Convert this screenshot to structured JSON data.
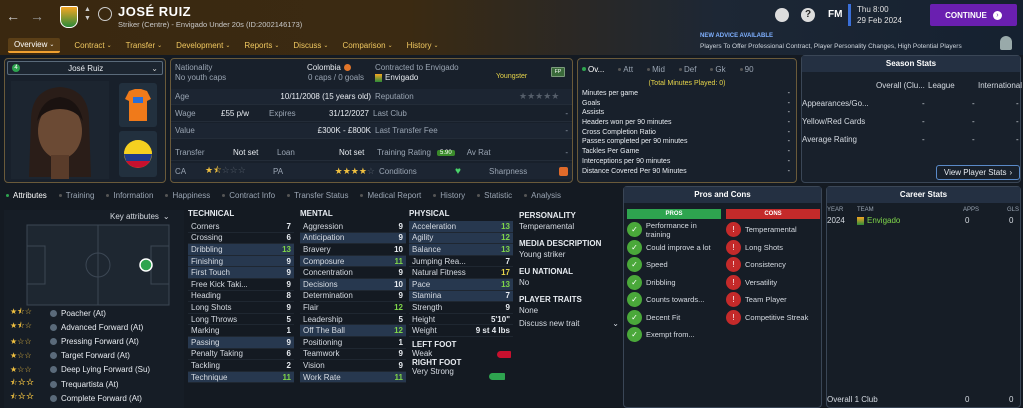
{
  "header": {
    "player_name": "JOSÉ RUIZ",
    "subtitle": "Striker (Centre) - Envigado Under 20s (ID:2002146173)",
    "date_day": "Thu 8:00",
    "date": "29 Feb 2024",
    "continue_label": "CONTINUE",
    "fm_label": "FM",
    "advice_title": "NEW ADVICE AVAILABLE",
    "advice_text": "Players To Offer Professional Contract, Player Personality Changes, High Potential Players"
  },
  "nav_tabs": [
    "Overview",
    "Contract",
    "Transfer",
    "Development",
    "Reports",
    "Discuss",
    "Comparison",
    "History"
  ],
  "player_card": {
    "name": "José Ruiz"
  },
  "info": {
    "nationality_label": "Nationality",
    "nationality": "Colombia",
    "youth_caps": "No youth caps",
    "caps": "0 caps / 0 goals",
    "contracted_label": "Contracted to Envigado",
    "club": "Envigado",
    "status": "Youngster",
    "age_label": "Age",
    "age": "10/11/2008 (15 years old)",
    "reputation_label": "Reputation",
    "wage_label": "Wage",
    "wage": "£55 p/w",
    "expires_label": "Expires",
    "expires": "31/12/2027",
    "last_club_label": "Last Club",
    "value_label": "Value",
    "value": "£300K - £800K",
    "last_fee_label": "Last Transfer Fee",
    "transfer_label": "Transfer",
    "transfer": "Not set",
    "loan_label": "Loan",
    "loan": "Not set",
    "training_label": "Training Rating",
    "training_rating": "5.90",
    "av_rat_label": "Av Rat",
    "ca_label": "CA",
    "pa_label": "PA",
    "conditions_label": "Conditions",
    "sharpness_label": "Sharpness",
    "ca_stars": 1.5,
    "pa_stars": 4,
    "reputation_stars": 0
  },
  "overview_stats": {
    "tabs": [
      "Ov...",
      "Att",
      "Mid",
      "Def",
      "Gk",
      "90"
    ],
    "minutes_note": "(Total Minutes Played: 0)",
    "rows": [
      {
        "label": "Minutes per game",
        "value": "-"
      },
      {
        "label": "Goals",
        "value": "-"
      },
      {
        "label": "Assists",
        "value": "-"
      },
      {
        "label": "Headers won per 90 minutes",
        "value": "-"
      },
      {
        "label": "Cross Completion Ratio",
        "value": "-"
      },
      {
        "label": "Passes completed per 90 minutes",
        "value": "-"
      },
      {
        "label": "Tackles Per Game",
        "value": "-"
      },
      {
        "label": "Interceptions per 90 minutes",
        "value": "-"
      },
      {
        "label": "Distance Covered Per 90 Minutes",
        "value": "-"
      }
    ]
  },
  "season_stats": {
    "title": "Season Stats",
    "cols": [
      "Overall (Clu...",
      "League",
      "International"
    ],
    "rows": [
      {
        "label": "Appearances/Go...",
        "values": [
          "-",
          "-",
          "-"
        ]
      },
      {
        "label": "Yellow/Red Cards",
        "values": [
          "-",
          "-",
          "-"
        ]
      },
      {
        "label": "Average Rating",
        "values": [
          "-",
          "-",
          "-"
        ]
      }
    ],
    "button": "View Player Stats"
  },
  "sub_tabs": [
    "Attributes",
    "Training",
    "Information",
    "Happiness",
    "Contract Info",
    "Transfer Status",
    "Medical Report",
    "History",
    "Statistic",
    "Analysis"
  ],
  "key_attributes_label": "Key attributes",
  "roles": [
    {
      "name": "Poacher (At)",
      "stars": 1.5
    },
    {
      "name": "Advanced Forward (At)",
      "stars": 1.5
    },
    {
      "name": "Pressing Forward (At)",
      "stars": 1
    },
    {
      "name": "Target Forward (At)",
      "stars": 1
    },
    {
      "name": "Deep Lying Forward (Su)",
      "stars": 1
    },
    {
      "name": "Trequartista (At)",
      "stars": 0.5
    },
    {
      "name": "Complete Forward (At)",
      "stars": 0.5
    }
  ],
  "technical": {
    "title": "TECHNICAL",
    "rows": [
      {
        "name": "Corners",
        "value": "7",
        "hl": false,
        "c": ""
      },
      {
        "name": "Crossing",
        "value": "6",
        "hl": false,
        "c": ""
      },
      {
        "name": "Dribbling",
        "value": "13",
        "hl": true,
        "c": "g"
      },
      {
        "name": "Finishing",
        "value": "9",
        "hl": true,
        "c": ""
      },
      {
        "name": "First Touch",
        "value": "9",
        "hl": true,
        "c": ""
      },
      {
        "name": "Free Kick Taki...",
        "value": "9",
        "hl": false,
        "c": ""
      },
      {
        "name": "Heading",
        "value": "8",
        "hl": false,
        "c": ""
      },
      {
        "name": "Long Shots",
        "value": "9",
        "hl": false,
        "c": ""
      },
      {
        "name": "Long Throws",
        "value": "5",
        "hl": false,
        "c": ""
      },
      {
        "name": "Marking",
        "value": "1",
        "hl": false,
        "c": ""
      },
      {
        "name": "Passing",
        "value": "9",
        "hl": true,
        "c": ""
      },
      {
        "name": "Penalty Taking",
        "value": "6",
        "hl": false,
        "c": ""
      },
      {
        "name": "Tackling",
        "value": "2",
        "hl": false,
        "c": ""
      },
      {
        "name": "Technique",
        "value": "11",
        "hl": true,
        "c": "g"
      }
    ]
  },
  "mental": {
    "title": "MENTAL",
    "rows": [
      {
        "name": "Aggression",
        "value": "9",
        "hl": false,
        "c": ""
      },
      {
        "name": "Anticipation",
        "value": "9",
        "hl": true,
        "c": ""
      },
      {
        "name": "Bravery",
        "value": "10",
        "hl": false,
        "c": ""
      },
      {
        "name": "Composure",
        "value": "11",
        "hl": true,
        "c": "g"
      },
      {
        "name": "Concentration",
        "value": "9",
        "hl": false,
        "c": ""
      },
      {
        "name": "Decisions",
        "value": "10",
        "hl": true,
        "c": ""
      },
      {
        "name": "Determination",
        "value": "9",
        "hl": false,
        "c": ""
      },
      {
        "name": "Flair",
        "value": "12",
        "hl": false,
        "c": "g"
      },
      {
        "name": "Leadership",
        "value": "5",
        "hl": false,
        "c": ""
      },
      {
        "name": "Off The Ball",
        "value": "12",
        "hl": true,
        "c": "g"
      },
      {
        "name": "Positioning",
        "value": "1",
        "hl": false,
        "c": ""
      },
      {
        "name": "Teamwork",
        "value": "9",
        "hl": false,
        "c": ""
      },
      {
        "name": "Vision",
        "value": "9",
        "hl": false,
        "c": ""
      },
      {
        "name": "Work Rate",
        "value": "11",
        "hl": true,
        "c": "g"
      }
    ]
  },
  "physical": {
    "title": "PHYSICAL",
    "rows": [
      {
        "name": "Acceleration",
        "value": "13",
        "hl": true,
        "c": "g"
      },
      {
        "name": "Agility",
        "value": "12",
        "hl": true,
        "c": "g"
      },
      {
        "name": "Balance",
        "value": "13",
        "hl": true,
        "c": "g"
      },
      {
        "name": "Jumping Rea...",
        "value": "7",
        "hl": false,
        "c": ""
      },
      {
        "name": "Natural Fitness",
        "value": "17",
        "hl": false,
        "c": "y"
      },
      {
        "name": "Pace",
        "value": "13",
        "hl": true,
        "c": "g"
      },
      {
        "name": "Stamina",
        "value": "7",
        "hl": true,
        "c": ""
      },
      {
        "name": "Strength",
        "value": "9",
        "hl": false,
        "c": ""
      }
    ],
    "height_label": "Height",
    "height": "5'10\"",
    "weight_label": "Weight",
    "weight": "9 st 4 lbs",
    "left_foot_label": "LEFT FOOT",
    "left_foot": "Weak",
    "right_foot_label": "RIGHT FOOT",
    "right_foot": "Very Strong"
  },
  "personality": {
    "personality_label": "PERSONALITY",
    "personality": "Temperamental",
    "media_label": "MEDIA DESCRIPTION",
    "media": "Young striker",
    "eu_label": "EU NATIONAL",
    "eu": "No",
    "traits_label": "PLAYER TRAITS",
    "traits": "None",
    "discuss": "Discuss new trait"
  },
  "pros_cons": {
    "title": "Pros and Cons",
    "pros_label": "PROS",
    "cons_label": "CONS",
    "pros": [
      "Performance in training",
      "Could improve a lot",
      "Speed",
      "Dribbling",
      "Counts towards...",
      "Decent Fit",
      "Exempt from..."
    ],
    "cons": [
      "Temperamental",
      "Long Shots",
      "Consistency",
      "Versatility",
      "Team Player",
      "Competitive Streak"
    ]
  },
  "career": {
    "title": "Career Stats",
    "cols": [
      "YEAR",
      "TEAM",
      "APPS",
      "GLS"
    ],
    "rows": [
      {
        "year": "2024",
        "team": "Envigado",
        "apps": "0",
        "gls": "0"
      }
    ],
    "footer_label": "Overall 1 Club",
    "footer_apps": "0",
    "footer_gls": "0"
  },
  "colors": {
    "accent": "#f0a030",
    "continue": "#6a1fb0",
    "green": "#7fd64a",
    "red": "#c42a2a"
  }
}
